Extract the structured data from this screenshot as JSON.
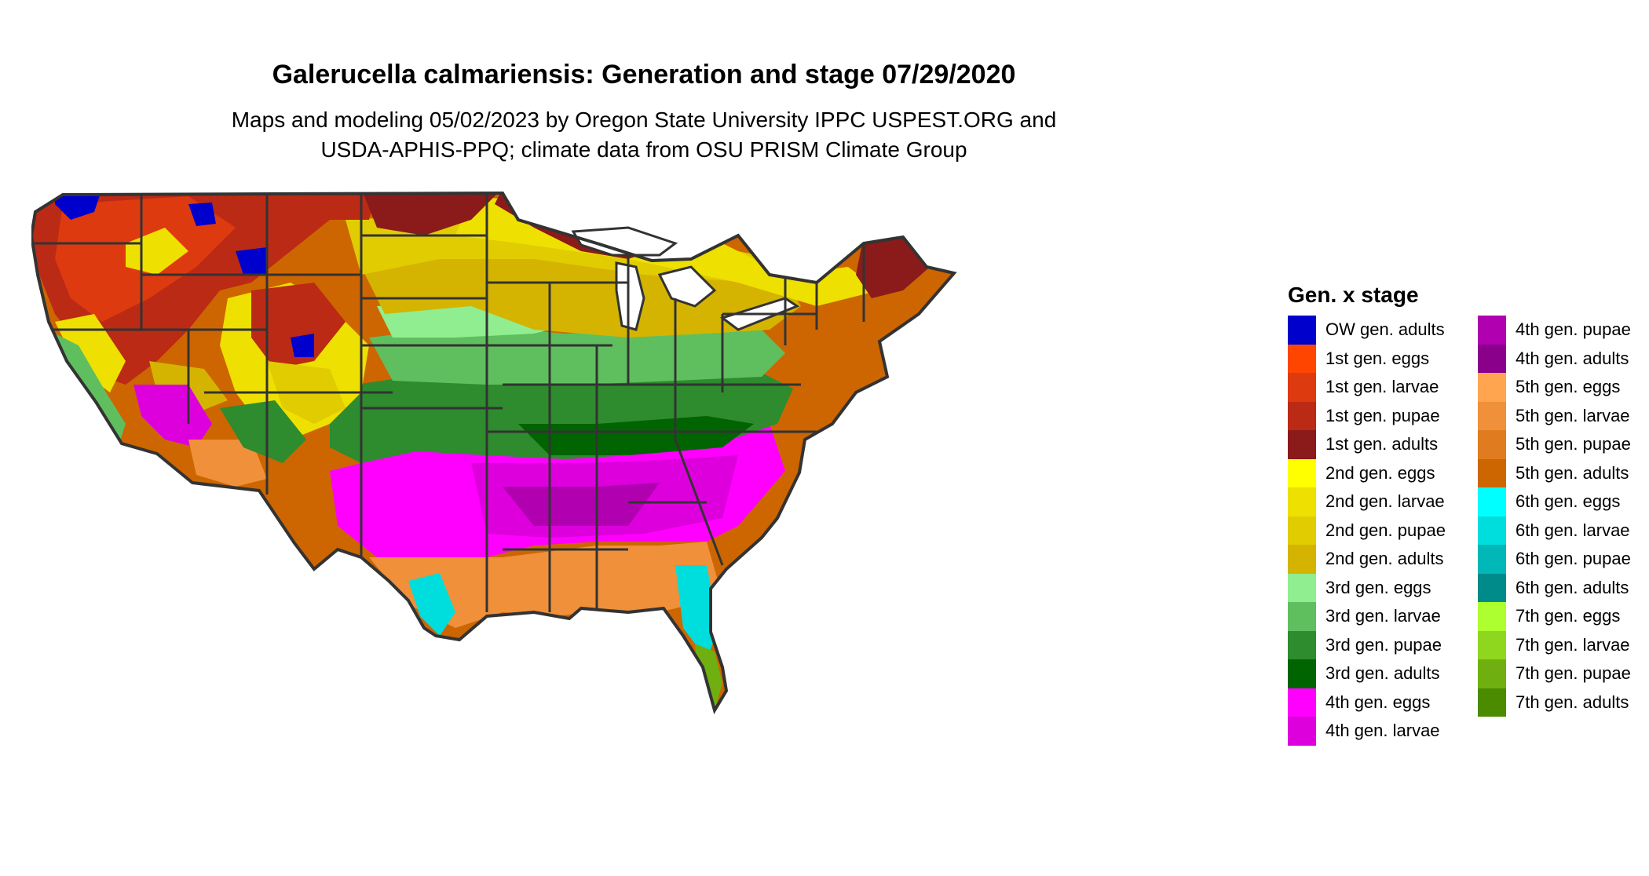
{
  "title": "Galerucella calmariensis: Generation and stage 07/29/2020",
  "subtitle_line1": "Maps and modeling 05/02/2023 by Oregon State University IPPC USPEST.ORG and",
  "subtitle_line2": "USDA-APHIS-PPQ; climate data from OSU PRISM Climate Group",
  "legend": {
    "title": "Gen. x stage",
    "col1": [
      {
        "label": "OW gen. adults",
        "color": "#0000cd"
      },
      {
        "label": "1st gen. eggs",
        "color": "#ff4500"
      },
      {
        "label": "1st gen. larvae",
        "color": "#de3a10"
      },
      {
        "label": "1st gen. pupae",
        "color": "#bb2a15"
      },
      {
        "label": "1st gen. adults",
        "color": "#8b1a1a"
      },
      {
        "label": "2nd gen. eggs",
        "color": "#ffff00"
      },
      {
        "label": "2nd gen. larvae",
        "color": "#eee000"
      },
      {
        "label": "2nd gen. pupae",
        "color": "#e0cc00"
      },
      {
        "label": "2nd gen. adults",
        "color": "#d4b400"
      },
      {
        "label": "3rd gen. eggs",
        "color": "#90ee90"
      },
      {
        "label": "3rd gen. larvae",
        "color": "#5fbf5f"
      },
      {
        "label": "3rd gen. pupae",
        "color": "#2e8b2e"
      },
      {
        "label": "3rd gen. adults",
        "color": "#006400"
      },
      {
        "label": "4th gen. eggs",
        "color": "#ff00ff"
      },
      {
        "label": "4th gen. larvae",
        "color": "#dd00dd"
      }
    ],
    "col2": [
      {
        "label": "4th gen. pupae",
        "color": "#b000b0"
      },
      {
        "label": "4th gen. adults",
        "color": "#8b008b"
      },
      {
        "label": "5th gen. eggs",
        "color": "#ffa54f"
      },
      {
        "label": "5th gen. larvae",
        "color": "#f0903a"
      },
      {
        "label": "5th gen. pupae",
        "color": "#e07b20"
      },
      {
        "label": "5th gen. adults",
        "color": "#cd6600"
      },
      {
        "label": "6th gen. eggs",
        "color": "#00ffff"
      },
      {
        "label": "6th gen. larvae",
        "color": "#00dddd"
      },
      {
        "label": "6th gen. pupae",
        "color": "#00b8b8"
      },
      {
        "label": "6th gen. adults",
        "color": "#008b8b"
      },
      {
        "label": "7th gen. eggs",
        "color": "#adff2f"
      },
      {
        "label": "7th gen. larvae",
        "color": "#8fd61f"
      },
      {
        "label": "7th gen. pupae",
        "color": "#6fb010"
      },
      {
        "label": "7th gen. adults",
        "color": "#4a8b00"
      }
    ]
  }
}
